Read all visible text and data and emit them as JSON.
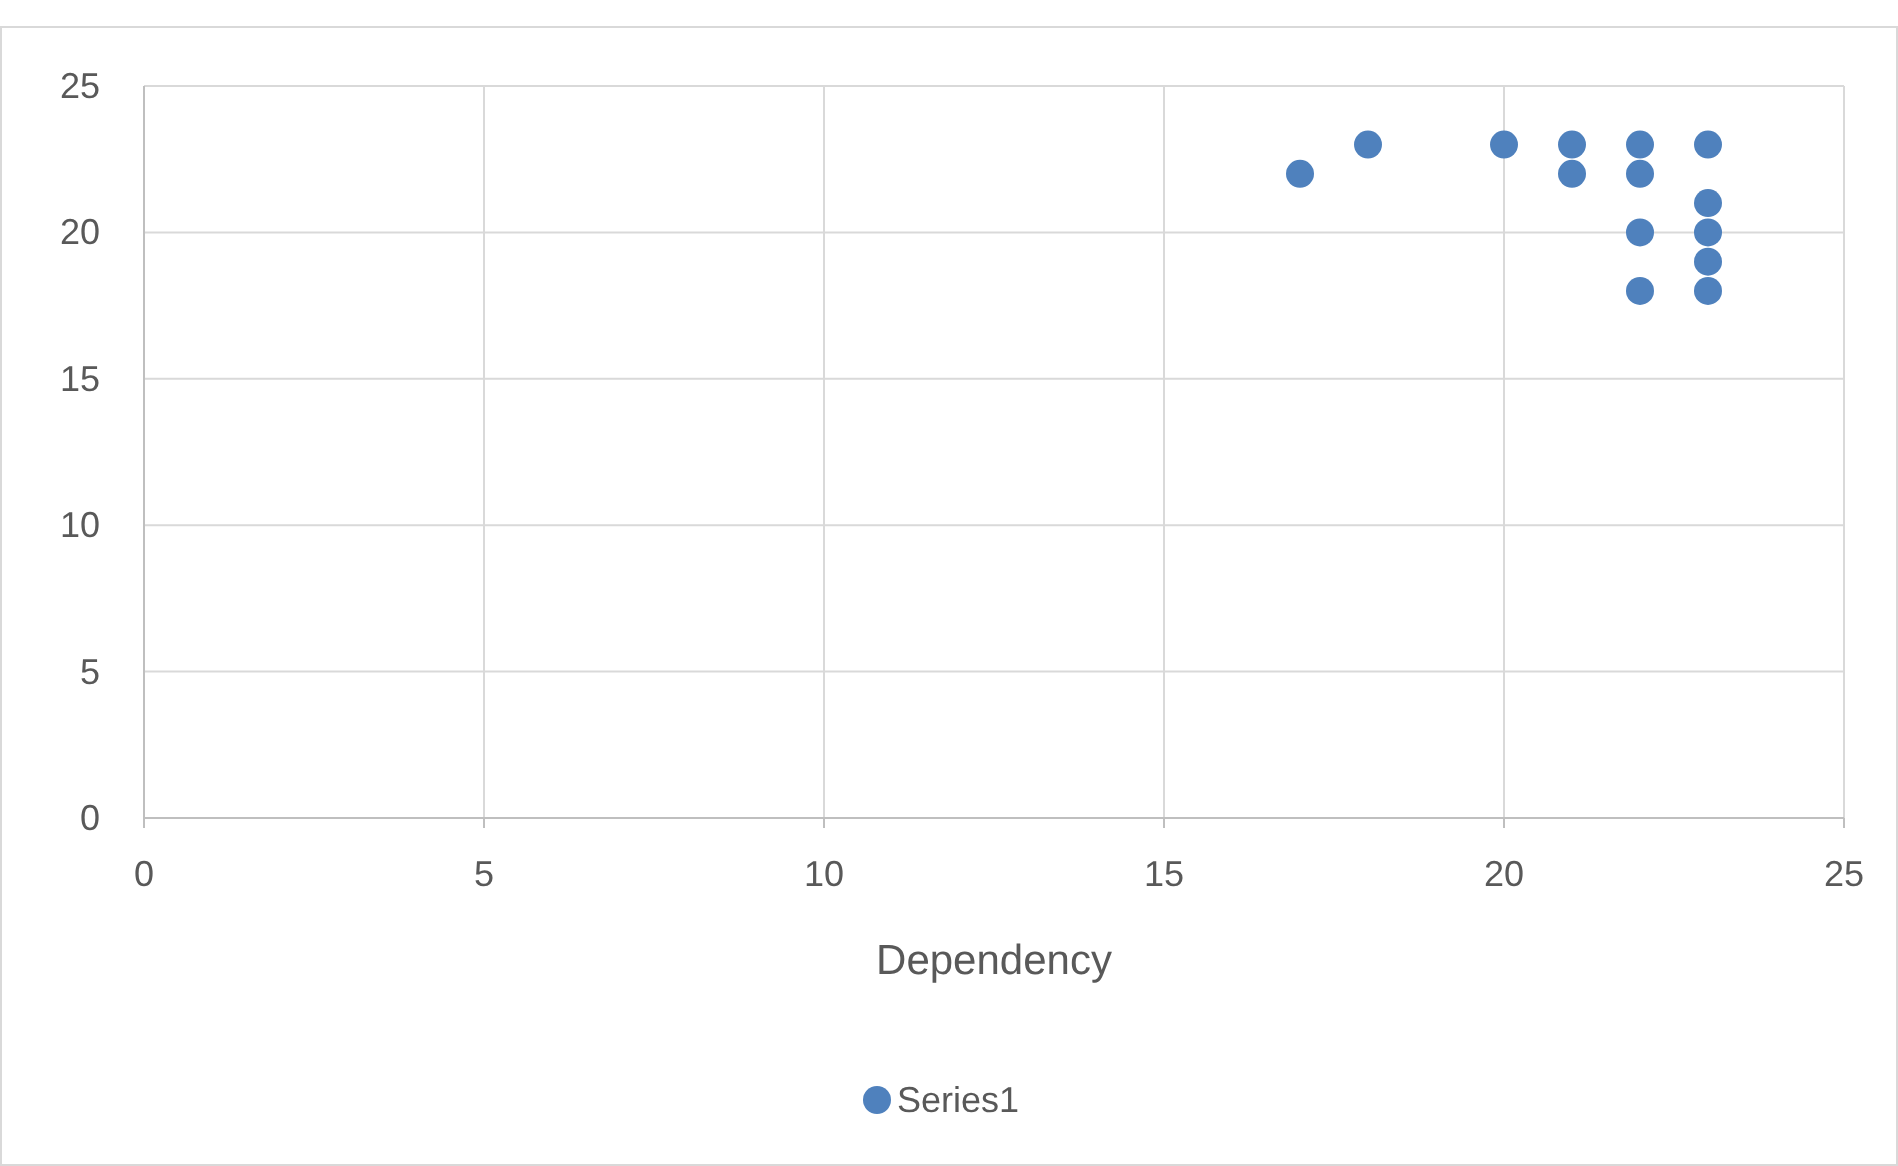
{
  "chart_data": {
    "type": "scatter",
    "xlabel": "Dependency",
    "x": [
      17,
      18,
      20,
      21,
      21,
      22,
      22,
      22,
      22,
      23,
      23,
      23,
      23,
      23
    ],
    "series": [
      {
        "name": "Series1",
        "color": "#4f81bd",
        "values": [
          22,
          23,
          23,
          23,
          22,
          23,
          22,
          20,
          18,
          23,
          21,
          20,
          19,
          18
        ]
      }
    ],
    "xlim": [
      0,
      25
    ],
    "ylim": [
      0,
      25
    ],
    "xticks": [
      0,
      5,
      10,
      15,
      20,
      25
    ],
    "yticks": [
      0,
      5,
      10,
      15,
      20,
      25
    ],
    "grid": true,
    "legend": "bottom",
    "marker": "circle"
  }
}
